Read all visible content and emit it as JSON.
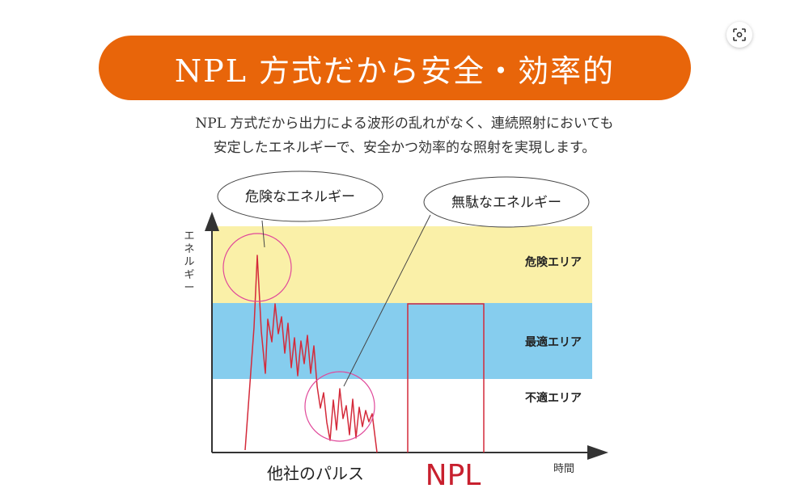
{
  "banner": {
    "title": "NPL 方式だから安全・効率的",
    "color": "#E8650A"
  },
  "description": [
    "NPL 方式だから出力による波形の乱れがなく、連続照射においても",
    "安定したエネルギーで、安全かつ効率的な照射を実現します。"
  ],
  "lens_icon": "image-search-icon",
  "diagram": {
    "y_axis_label": "エネルギー",
    "x_axis_label": "時間",
    "zones": [
      {
        "label": "危険エリア",
        "color": "#FAF0A8"
      },
      {
        "label": "最適エリア",
        "color": "#86CDEE"
      },
      {
        "label": "不適エリア",
        "color": "#FFFFFF"
      }
    ],
    "callouts": [
      {
        "text": "危険なエネルギー"
      },
      {
        "text": "無駄なエネルギー"
      }
    ],
    "pulse_labels": {
      "competitor": "他社のパルス",
      "npl": "NPL"
    },
    "colors": {
      "waveform": "#D42A3A",
      "highlight_circle": "#E0489A",
      "npl_label": "#C8202E",
      "axis": "#333333"
    }
  }
}
